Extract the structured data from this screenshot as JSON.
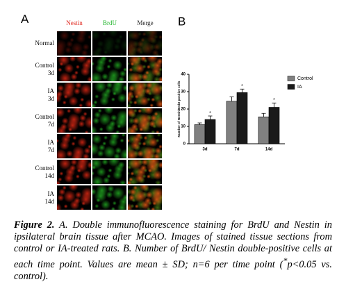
{
  "panel_a": {
    "letter": "A",
    "columns": [
      "Nestin",
      "BrdU",
      "Merge"
    ],
    "rows": [
      [
        "Normal"
      ],
      [
        "Control",
        "3d"
      ],
      [
        "IA",
        "3d"
      ],
      [
        "Control",
        "7d"
      ],
      [
        "IA",
        "7d"
      ],
      [
        "Control",
        "14d"
      ],
      [
        "IA",
        "14d"
      ]
    ]
  },
  "panel_b": {
    "letter": "B"
  },
  "chart_data": {
    "type": "bar",
    "y_label": "Number of Nestin/BrdU positive cells",
    "categories": [
      "3d",
      "7d",
      "14d"
    ],
    "series": [
      {
        "name": "Control",
        "color": "#808080",
        "values": [
          11,
          24.5,
          15.5
        ],
        "errors": [
          1,
          2.5,
          2
        ]
      },
      {
        "name": "IA",
        "color": "#1a1a1a",
        "values": [
          14,
          29.5,
          21
        ],
        "errors": [
          2,
          2,
          2.5
        ],
        "annotations": [
          "*",
          "*",
          "*"
        ]
      }
    ],
    "ylim": [
      0,
      40
    ],
    "yticks": [
      0,
      10,
      20,
      30,
      40
    ]
  },
  "caption": {
    "label": "Figure 2.",
    "body": " A. Double immunofluorescence staining for BrdU and Nestin in ipsilateral brain tissue after MCAO. Images of stained tissue sections from control or IA-treated rats. B. Number of BrdU/ Nestin double-positive cells at each time point. Values are mean ± SD; n=6 per time point (",
    "sup": "*",
    "tail": "p<0.05 vs. control)."
  }
}
